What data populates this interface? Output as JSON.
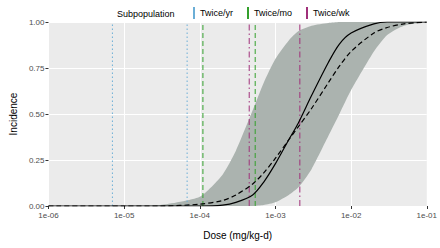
{
  "chart_data": {
    "type": "line",
    "x_label": "Dose (mg/kg-d)",
    "y_label": "Incidence",
    "legend_title": "Subpopulation",
    "legend": "top",
    "log": "x",
    "grid": true,
    "xlim": [
      1e-06,
      0.1
    ],
    "xticks": [
      {
        "value": 1e-06,
        "label": "1e-06"
      },
      {
        "value": 1e-05,
        "label": "1e-05"
      },
      {
        "value": 0.0001,
        "label": "1e-04"
      },
      {
        "value": 0.001,
        "label": "1e-03"
      },
      {
        "value": 0.01,
        "label": "1e-02"
      },
      {
        "value": 0.1,
        "label": "1e-01"
      }
    ],
    "ylim": [
      0,
      1
    ],
    "yticks": [
      {
        "value": 0,
        "label": "0.00"
      },
      {
        "value": 0.25,
        "label": "0.25"
      },
      {
        "value": 0.5,
        "label": "0.50"
      },
      {
        "value": 0.75,
        "label": "0.75"
      },
      {
        "value": 1,
        "label": "1.00"
      }
    ],
    "x": [
      1e-06,
      1e-05,
      3e-05,
      0.0001,
      0.0002,
      0.0003,
      0.0005,
      0.0007,
      0.001,
      0.0015,
      0.002,
      0.003,
      0.005,
      0.007,
      0.01,
      0.02,
      0.03,
      0.05,
      0.1
    ],
    "band": {
      "color": "#abb3af",
      "lower": [
        0,
        0,
        0,
        0,
        0,
        0,
        0,
        0.005,
        0.02,
        0.06,
        0.1,
        0.2,
        0.38,
        0.5,
        0.63,
        0.84,
        0.93,
        0.98,
        1
      ],
      "upper": [
        0,
        0,
        0.005,
        0.05,
        0.17,
        0.3,
        0.52,
        0.67,
        0.8,
        0.9,
        0.95,
        0.98,
        0.995,
        1,
        1,
        1,
        1,
        1,
        1
      ]
    },
    "curves": [
      {
        "color": "#000000",
        "line_style": "solid",
        "values": [
          0,
          0,
          0,
          0,
          0.005,
          0.02,
          0.06,
          0.13,
          0.23,
          0.36,
          0.45,
          0.6,
          0.78,
          0.88,
          0.94,
          0.99,
          1,
          1,
          1
        ]
      },
      {
        "color": "#000000",
        "line_style": "dashed",
        "values": [
          0,
          0,
          0,
          0.01,
          0.03,
          0.06,
          0.12,
          0.18,
          0.26,
          0.36,
          0.43,
          0.53,
          0.67,
          0.76,
          0.84,
          0.94,
          0.97,
          0.99,
          1
        ]
      }
    ],
    "series": [
      {
        "name": "Twice/yr",
        "color": "#6baed6",
        "line_style": "dotted",
        "doses": [
          7e-06,
          6.8e-05
        ]
      },
      {
        "name": "Twice/mo",
        "color": "#33a02c",
        "line_style": "dashed",
        "doses": [
          0.00011,
          0.00054
        ]
      },
      {
        "name": "Twice/wk",
        "color": "#a0307a",
        "line_style": "dotdash",
        "doses": [
          0.00045,
          0.0021
        ]
      }
    ]
  }
}
